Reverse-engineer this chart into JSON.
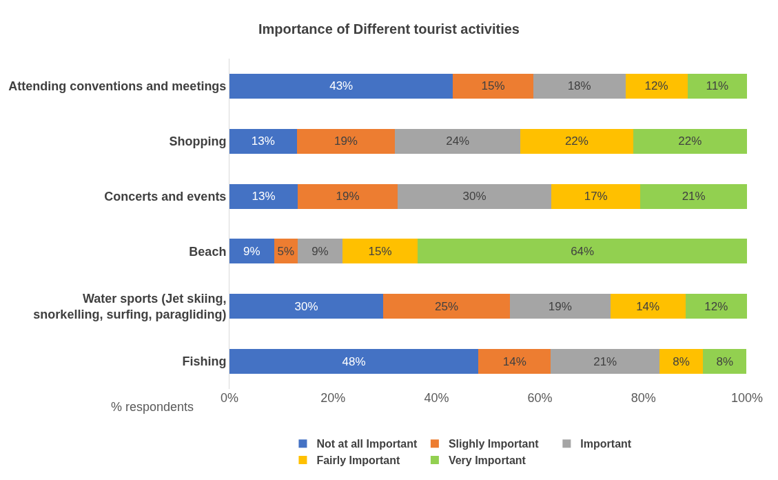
{
  "chart_data": {
    "type": "bar",
    "orientation": "horizontal",
    "stacked": true,
    "title": "Importance of Different tourist activities",
    "xlabel": "% respondents",
    "categories": [
      "Attending conventions and meetings",
      "Shopping",
      "Concerts and events",
      "Beach",
      "Water sports (Jet skiing, snorkelling, surfing, paragliding)",
      "Fishing"
    ],
    "series": [
      {
        "name": "Not at all Important",
        "color": "#4472c4",
        "values": [
          43.2,
          13.0,
          13.2,
          8.6,
          29.7,
          48.1
        ],
        "value_labels": [
          "43%",
          "13%",
          "13%",
          "9%",
          "30%",
          "48%"
        ]
      },
      {
        "name": "Slighly Important",
        "color": "#ed7d31",
        "values": [
          15.5,
          19.0,
          19.3,
          4.6,
          24.5,
          14.0
        ],
        "value_labels": [
          "15%",
          "19%",
          "19%",
          "5%",
          "25%",
          "14%"
        ]
      },
      {
        "name": "Important",
        "color": "#a5a5a5",
        "values": [
          17.8,
          24.2,
          29.7,
          8.6,
          19.4,
          21.0
        ],
        "value_labels": [
          "18%",
          "24%",
          "30%",
          "9%",
          "19%",
          "21%"
        ]
      },
      {
        "name": "Fairly Important",
        "color": "#ffc000",
        "values": [
          12.0,
          21.8,
          17.2,
          14.6,
          14.5,
          8.4
        ],
        "value_labels": [
          "12%",
          "22%",
          "17%",
          "15%",
          "14%",
          "8%"
        ]
      },
      {
        "name": "Very Important",
        "color": "#92d050",
        "values": [
          11.5,
          22.0,
          20.6,
          63.6,
          11.9,
          8.4
        ],
        "value_labels": [
          "11%",
          "22%",
          "21%",
          "64%",
          "12%",
          "8%"
        ]
      }
    ],
    "xlim": [
      0,
      100
    ],
    "xticks": [
      {
        "value": 0,
        "label": "0%"
      },
      {
        "value": 20,
        "label": "20%"
      },
      {
        "value": 40,
        "label": "40%"
      },
      {
        "value": 60,
        "label": "60%"
      },
      {
        "value": 80,
        "label": "80%"
      },
      {
        "value": 100,
        "label": "100%"
      }
    ],
    "legend": "bottom"
  }
}
